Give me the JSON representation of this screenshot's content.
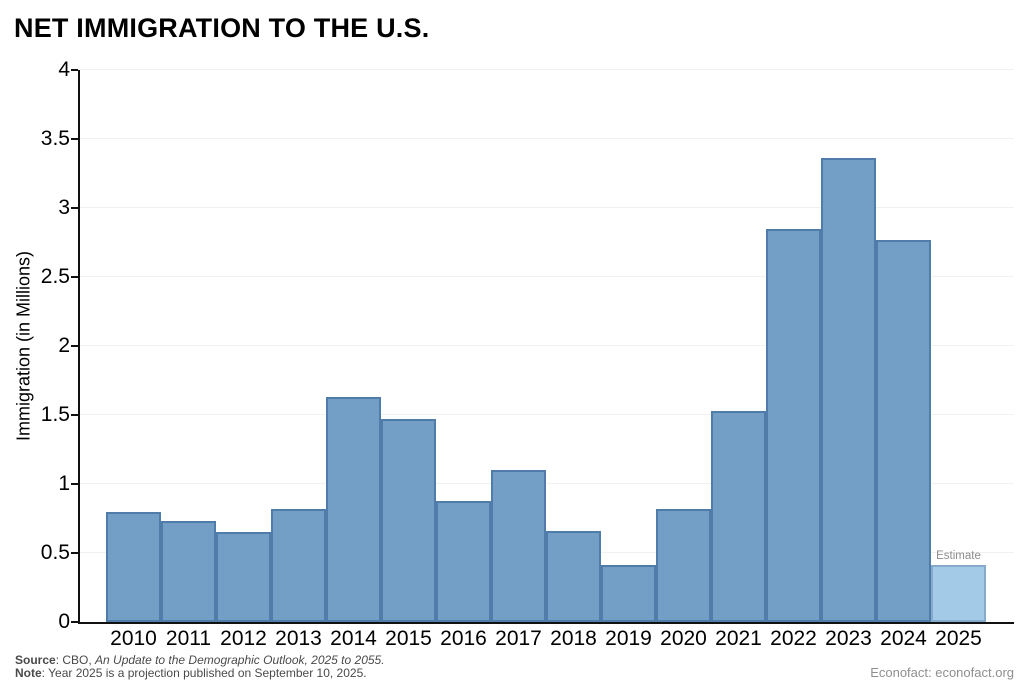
{
  "title": "NET IMMIGRATION TO THE U.S.",
  "chart_data": {
    "type": "bar",
    "title": "NET IMMIGRATION TO THE U.S.",
    "categories": [
      "2010",
      "2011",
      "2012",
      "2013",
      "2014",
      "2015",
      "2016",
      "2017",
      "2018",
      "2019",
      "2020",
      "2021",
      "2022",
      "2023",
      "2024",
      "2025"
    ],
    "values": [
      0.8,
      0.73,
      0.65,
      0.82,
      1.63,
      1.47,
      0.88,
      1.1,
      0.66,
      0.41,
      0.82,
      1.53,
      2.85,
      3.36,
      2.77,
      0.41
    ],
    "xlabel": "",
    "ylabel": "Immigration (in Millions)",
    "ylim": [
      0,
      4
    ],
    "yticks": [
      0,
      0.5,
      1,
      1.5,
      2,
      2.5,
      3,
      3.5,
      4
    ],
    "ytick_labels": [
      "0",
      "0.5",
      "1",
      "1.5",
      "2",
      "2.5",
      "3",
      "3.5",
      "4"
    ],
    "grid": true,
    "legend": "none",
    "estimate_year": "2025",
    "annotations": [
      {
        "text": "Estimate",
        "target": "2025"
      }
    ],
    "colors": {
      "bar_fill": "#739FC6",
      "bar_border": "#4F7CA8",
      "estimate_fill": "#A3CBE7",
      "estimate_border": "#85AACB",
      "gridline": "#F1F1F1",
      "axis": "#111111",
      "estimate_text": "#8C8C8C"
    }
  },
  "footer": {
    "source_label": "Source",
    "source_prefix": ": CBO, ",
    "source_italic": "An Update to the Demographic Outlook, 2025 to 2055.",
    "note_label": "Note",
    "note_text": ": Year 2025 is a projection published on September 10, 2025.",
    "branding": "Econofact: econofact.org"
  }
}
